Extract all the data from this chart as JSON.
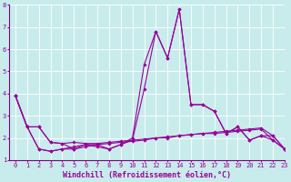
{
  "title": "",
  "xlabel": "Windchill (Refroidissement éolien,°C)",
  "ylabel": "",
  "background_color": "#c8ecec",
  "grid_color": "#ffffff",
  "line_color": "#990099",
  "spine_color": "#800080",
  "x_data": [
    0,
    1,
    2,
    3,
    4,
    5,
    6,
    7,
    8,
    9,
    10,
    11,
    12,
    13,
    14,
    15,
    16,
    17,
    18,
    19,
    20,
    21,
    22,
    23
  ],
  "series": [
    [
      3.9,
      2.5,
      2.5,
      1.8,
      1.75,
      1.8,
      1.75,
      1.75,
      1.8,
      1.85,
      1.9,
      1.95,
      2.0,
      2.05,
      2.1,
      2.15,
      2.2,
      2.25,
      2.3,
      2.35,
      2.4,
      2.45,
      2.1,
      1.5
    ],
    [
      3.9,
      2.5,
      1.5,
      1.4,
      1.5,
      1.6,
      1.7,
      1.6,
      1.5,
      1.7,
      2.0,
      5.3,
      6.8,
      5.6,
      7.8,
      3.5,
      3.5,
      3.2,
      2.2,
      2.5,
      1.9,
      2.1,
      2.1,
      1.5
    ],
    [
      3.9,
      2.5,
      1.5,
      1.4,
      1.5,
      1.5,
      1.6,
      1.7,
      1.5,
      1.7,
      1.9,
      4.2,
      6.8,
      5.6,
      7.8,
      3.5,
      3.5,
      3.2,
      2.2,
      2.5,
      1.9,
      2.1,
      1.9,
      1.5
    ],
    [
      3.9,
      2.5,
      2.5,
      1.8,
      1.75,
      1.5,
      1.7,
      1.7,
      1.75,
      1.8,
      1.85,
      1.9,
      2.0,
      2.0,
      2.1,
      2.15,
      2.2,
      2.2,
      2.25,
      2.3,
      2.35,
      2.4,
      1.9,
      1.5
    ]
  ],
  "ylim": [
    1,
    8
  ],
  "xlim": [
    -0.5,
    23
  ],
  "yticks": [
    1,
    2,
    3,
    4,
    5,
    6,
    7,
    8
  ],
  "xticks": [
    0,
    1,
    2,
    3,
    4,
    5,
    6,
    7,
    8,
    9,
    10,
    11,
    12,
    13,
    14,
    15,
    16,
    17,
    18,
    19,
    20,
    21,
    22,
    23
  ],
  "xtick_labels": [
    "0",
    "1",
    "2",
    "3",
    "4",
    "5",
    "6",
    "7",
    "8",
    "9",
    "10",
    "11",
    "12",
    "13",
    "14",
    "15",
    "16",
    "17",
    "18",
    "19",
    "20",
    "21",
    "22",
    "23"
  ],
  "marker": "D",
  "markersize": 1.8,
  "linewidth": 0.8,
  "tick_fontsize": 5,
  "xlabel_fontsize": 6
}
